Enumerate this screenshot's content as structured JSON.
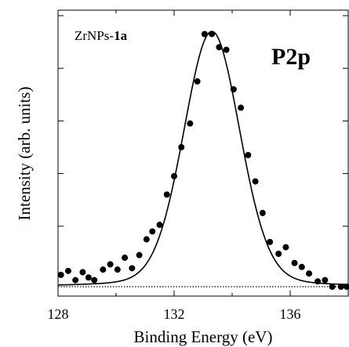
{
  "chart_data": {
    "type": "scatter",
    "sample_label_prefix": "ZrNPs-",
    "sample_label_bold": "1a",
    "peak_label": "P2p",
    "xlabel": "Binding Energy (eV)",
    "ylabel": "Intensity (arb. units)",
    "xlim": [
      128,
      138
    ],
    "ylim": [
      0,
      1.0
    ],
    "x_ticks": [
      128,
      132,
      136
    ],
    "x_minor_ticks": [
      130,
      134,
      138
    ],
    "y_ticks": [
      0.2,
      0.4,
      0.6,
      0.8,
      1.0
    ],
    "y_tick_labels_shown": false,
    "grid": false,
    "series": [
      {
        "role": "measured",
        "style": "filled-circles",
        "x": [
          128.1,
          128.35,
          128.6,
          128.85,
          129.05,
          129.25,
          129.55,
          129.8,
          130.05,
          130.3,
          130.55,
          130.8,
          131.05,
          131.25,
          131.5,
          131.75,
          132.0,
          132.25,
          132.55,
          132.8,
          133.05,
          133.3,
          133.55,
          133.8,
          134.05,
          134.3,
          134.55,
          134.8,
          135.05,
          135.3,
          135.6,
          135.85,
          136.15,
          136.4,
          136.65,
          136.95,
          137.2,
          137.45,
          137.75,
          137.95
        ],
        "y": [
          0.045,
          0.06,
          0.025,
          0.055,
          0.035,
          0.025,
          0.065,
          0.085,
          0.065,
          0.11,
          0.07,
          0.12,
          0.18,
          0.21,
          0.235,
          0.35,
          0.42,
          0.53,
          0.62,
          0.78,
          0.96,
          0.96,
          0.91,
          0.9,
          0.75,
          0.68,
          0.5,
          0.4,
          0.28,
          0.17,
          0.125,
          0.15,
          0.09,
          0.075,
          0.05,
          0.02,
          0.025,
          0.0,
          0.0,
          0.0
        ]
      },
      {
        "role": "fit",
        "style": "solid-line",
        "peak_center": 133.3,
        "peak_height": 0.97,
        "fwhm": 2.3,
        "baseline": 0.0
      },
      {
        "role": "background",
        "style": "dotted-line",
        "y": 0.0
      }
    ]
  }
}
